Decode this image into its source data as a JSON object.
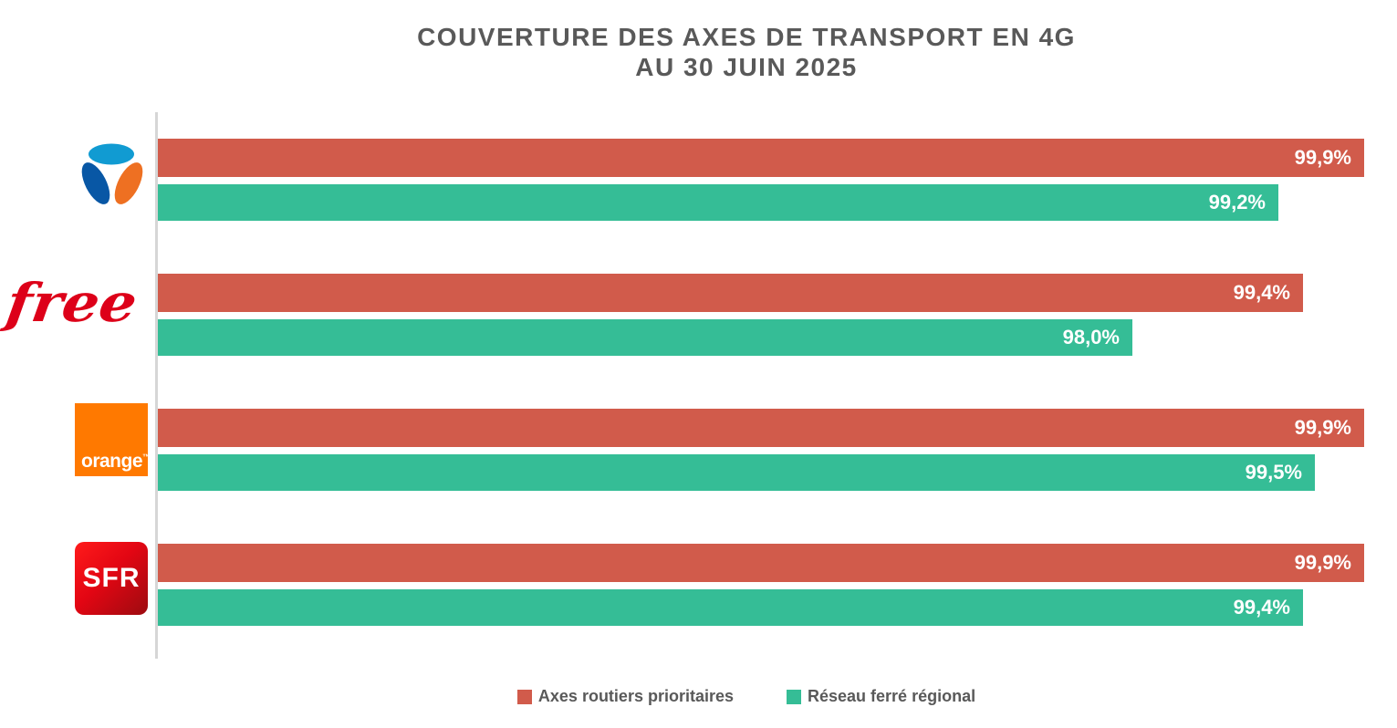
{
  "title": {
    "line1": "COUVERTURE DES AXES DE TRANSPORT EN 4G",
    "line2": "AU 30 JUIN 2025"
  },
  "colors": {
    "roads": "#d15b4b",
    "rail": "#35bd96",
    "title_text": "#595959",
    "axis_line": "#d6d6d6",
    "value_label": "#ffffff",
    "orange_brand": "#ff7900",
    "free_brand": "#dd0019",
    "sfr_brand": "#e30613",
    "bouygues_lightblue": "#119bd2",
    "bouygues_darkblue": "#0857a5",
    "bouygues_orange": "#ee7022"
  },
  "logos": {
    "free_text": "free",
    "orange_text": "orange",
    "orange_tm": "™",
    "sfr_text": "SFR"
  },
  "legend": {
    "items": [
      {
        "label": "Axes routiers prioritaires",
        "color": "#d15b4b"
      },
      {
        "label": "Réseau ferré régional",
        "color": "#35bd96"
      }
    ]
  },
  "chart_data": {
    "type": "bar",
    "orientation": "horizontal",
    "title": "COUVERTURE DES AXES DE TRANSPORT EN 4G AU 30 JUIN 2025",
    "categories": [
      "Bouygues Telecom",
      "Free",
      "Orange",
      "SFR"
    ],
    "series": [
      {
        "name": "Axes routiers prioritaires",
        "color": "#d15b4b",
        "values": [
          99.9,
          99.4,
          99.9,
          99.9
        ],
        "labels": [
          "99,9%",
          "99,4%",
          "99,9%",
          "99,9%"
        ]
      },
      {
        "name": "Réseau ferré régional",
        "color": "#35bd96",
        "values": [
          99.2,
          98.0,
          99.5,
          99.4
        ],
        "labels": [
          "99,2%",
          "98,0%",
          "99,5%",
          "99,4%"
        ]
      }
    ],
    "xlim": [
      90,
      100
    ],
    "unit": "%",
    "grid": false,
    "legend_position": "bottom",
    "value_labels": "inside-end"
  }
}
